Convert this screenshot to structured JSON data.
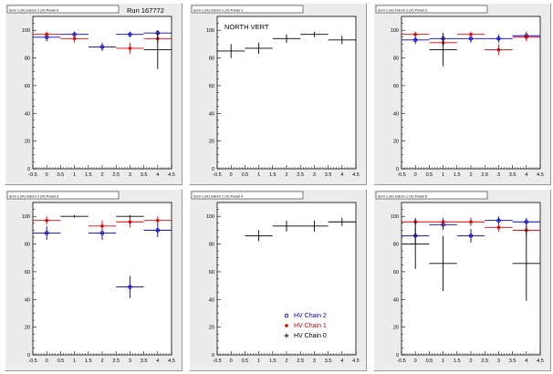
{
  "page": {
    "run_label": "Run 167772"
  },
  "legend": {
    "items": [
      {
        "label": "HV Chain 2",
        "color": "#0000cc",
        "marker": "circle"
      },
      {
        "label": "HV Chain 1",
        "color": "#dd0000",
        "marker": "star"
      },
      {
        "label": "HV Chain 0",
        "color": "#000000",
        "marker": "cross"
      }
    ]
  },
  "chart_data": [
    {
      "type": "scatter",
      "title": "dom 1 (H) Gdom 1 (V) Panel 0",
      "annotation": "",
      "xlim": [
        -0.5,
        4.5
      ],
      "ylim": [
        0,
        110
      ],
      "xticks": [
        "-0.5",
        "0",
        "0.5",
        "1",
        "1.5",
        "2",
        "2.5",
        "3",
        "3.5",
        "4",
        "4.5"
      ],
      "yticks": [
        "0",
        "20",
        "40",
        "60",
        "80",
        "100"
      ],
      "series": [
        {
          "color": "#0000cc",
          "marker": "circle",
          "points": [
            [
              0,
              95,
              0.5,
              3
            ],
            [
              1,
              97,
              0.5,
              2
            ],
            [
              2,
              88,
              0.5,
              3
            ],
            [
              3,
              97,
              0.5,
              2
            ],
            [
              4,
              98,
              0.5,
              2
            ]
          ]
        },
        {
          "color": "#dd0000",
          "marker": "star",
          "points": [
            [
              0,
              97,
              0.5,
              2
            ],
            [
              1,
              94,
              0.5,
              3
            ],
            [
              3,
              87,
              0.5,
              4
            ],
            [
              4,
              94,
              0.5,
              3
            ]
          ]
        },
        {
          "color": "#000000",
          "marker": "cross",
          "points": [
            [
              4,
              86,
              0.5,
              14
            ]
          ]
        }
      ]
    },
    {
      "type": "scatter",
      "title": "dom 1 (H) Gdom 1 (V) Panel 1",
      "annotation": "NORTH VERT",
      "xlim": [
        -0.5,
        4.5
      ],
      "ylim": [
        0,
        110
      ],
      "xticks": [
        "-0.5",
        "0",
        "0.5",
        "1",
        "1.5",
        "2",
        "2.5",
        "3",
        "3.5",
        "4",
        "4.5"
      ],
      "yticks": [
        "0",
        "20",
        "40",
        "60",
        "80",
        "100"
      ],
      "series": [
        {
          "color": "#000000",
          "marker": "cross",
          "points": [
            [
              0,
              85,
              0.5,
              5
            ],
            [
              1,
              87,
              0.5,
              4
            ],
            [
              2,
              94,
              0.5,
              3
            ],
            [
              3,
              97,
              0.5,
              2
            ],
            [
              4,
              93,
              0.5,
              3
            ]
          ]
        }
      ]
    },
    {
      "type": "scatter",
      "title": "dom 1 (H) Gdom 1 (V) Panel 2",
      "annotation": "",
      "xlim": [
        -0.5,
        4.5
      ],
      "ylim": [
        0,
        110
      ],
      "xticks": [
        "-0.5",
        "0",
        "0.5",
        "1",
        "1.5",
        "2",
        "2.5",
        "3",
        "3.5",
        "4",
        "4.5"
      ],
      "yticks": [
        "0",
        "20",
        "40",
        "60",
        "80",
        "100"
      ],
      "series": [
        {
          "color": "#0000cc",
          "marker": "circle",
          "points": [
            [
              0,
              93,
              0.5,
              3
            ],
            [
              1,
              94,
              0.5,
              3
            ],
            [
              2,
              94,
              0.5,
              3
            ],
            [
              3,
              94,
              0.5,
              3
            ],
            [
              4,
              96,
              0.5,
              3
            ]
          ]
        },
        {
          "color": "#dd0000",
          "marker": "star",
          "points": [
            [
              0,
              97,
              0.5,
              2
            ],
            [
              1,
              91,
              0.5,
              3
            ],
            [
              2,
              97,
              0.5,
              2
            ],
            [
              3,
              86,
              0.5,
              4
            ],
            [
              4,
              95,
              0.5,
              3
            ]
          ]
        },
        {
          "color": "#000000",
          "marker": "cross",
          "points": [
            [
              1,
              86,
              0.5,
              12
            ]
          ]
        }
      ]
    },
    {
      "type": "scatter",
      "title": "dom 1 (H) Gdom 1 (V) Panel 3",
      "annotation": "",
      "xlim": [
        -0.5,
        4.5
      ],
      "ylim": [
        0,
        110
      ],
      "xticks": [
        "-0.5",
        "0",
        "0.5",
        "1",
        "1.5",
        "2",
        "2.5",
        "3",
        "3.5",
        "4",
        "4.5"
      ],
      "yticks": [
        "0",
        "20",
        "40",
        "60",
        "80",
        "100"
      ],
      "series": [
        {
          "color": "#0000cc",
          "marker": "circle",
          "points": [
            [
              0,
              88,
              0.5,
              5
            ],
            [
              2,
              88,
              0.5,
              5
            ],
            [
              3,
              49,
              0.5,
              8
            ],
            [
              4,
              90,
              0.5,
              5
            ]
          ]
        },
        {
          "color": "#dd0000",
          "marker": "star",
          "points": [
            [
              0,
              97,
              0.5,
              3
            ],
            [
              2,
              93,
              0.5,
              4
            ],
            [
              3,
              96,
              0.5,
              4
            ],
            [
              4,
              97,
              0.5,
              3
            ]
          ]
        },
        {
          "color": "#000000",
          "marker": "cross",
          "points": [
            [
              1,
              100,
              0.5,
              1
            ],
            [
              3,
              100,
              0.5,
              1
            ]
          ]
        }
      ]
    },
    {
      "type": "scatter",
      "title": "dom 1 (H) Gdom 1 (V) Panel 4",
      "annotation": "",
      "xlim": [
        -0.5,
        4.5
      ],
      "ylim": [
        0,
        110
      ],
      "xticks": [
        "-0.5",
        "0",
        "0.5",
        "1",
        "1.5",
        "2",
        "2.5",
        "3",
        "3.5",
        "4",
        "4.5"
      ],
      "yticks": [
        "0",
        "20",
        "40",
        "60",
        "80",
        "100"
      ],
      "series": [
        {
          "color": "#000000",
          "marker": "cross",
          "points": [
            [
              1,
              86,
              0.5,
              4
            ],
            [
              2,
              93,
              0.5,
              4
            ],
            [
              3,
              93,
              0.5,
              4
            ],
            [
              4,
              96,
              0.5,
              3
            ]
          ]
        }
      ]
    },
    {
      "type": "scatter",
      "title": "dom 1 (H) Gdom 1 (V) Panel 5",
      "annotation": "",
      "xlim": [
        -0.5,
        4.5
      ],
      "ylim": [
        0,
        110
      ],
      "xticks": [
        "-0.5",
        "0",
        "0.5",
        "1",
        "1.5",
        "2",
        "2.5",
        "3",
        "3.5",
        "4",
        "4.5"
      ],
      "yticks": [
        "0",
        "20",
        "40",
        "60",
        "80",
        "100"
      ],
      "series": [
        {
          "color": "#0000cc",
          "marker": "circle",
          "points": [
            [
              0,
              86,
              0.5,
              6
            ],
            [
              1,
              94,
              0.5,
              4
            ],
            [
              2,
              86,
              0.5,
              5
            ],
            [
              3,
              97,
              0.5,
              3
            ],
            [
              4,
              96,
              0.5,
              3
            ]
          ]
        },
        {
          "color": "#dd0000",
          "marker": "star",
          "points": [
            [
              0,
              96,
              0.5,
              3
            ],
            [
              1,
              96,
              0.5,
              3
            ],
            [
              2,
              96,
              0.5,
              3
            ],
            [
              3,
              92,
              0.5,
              3
            ],
            [
              4,
              90,
              0.5,
              4
            ]
          ]
        },
        {
          "color": "#000000",
          "marker": "cross",
          "points": [
            [
              0,
              80,
              0.5,
              18
            ],
            [
              1,
              66,
              0.5,
              20
            ],
            [
              4,
              66,
              0.5,
              27
            ]
          ]
        }
      ]
    }
  ]
}
